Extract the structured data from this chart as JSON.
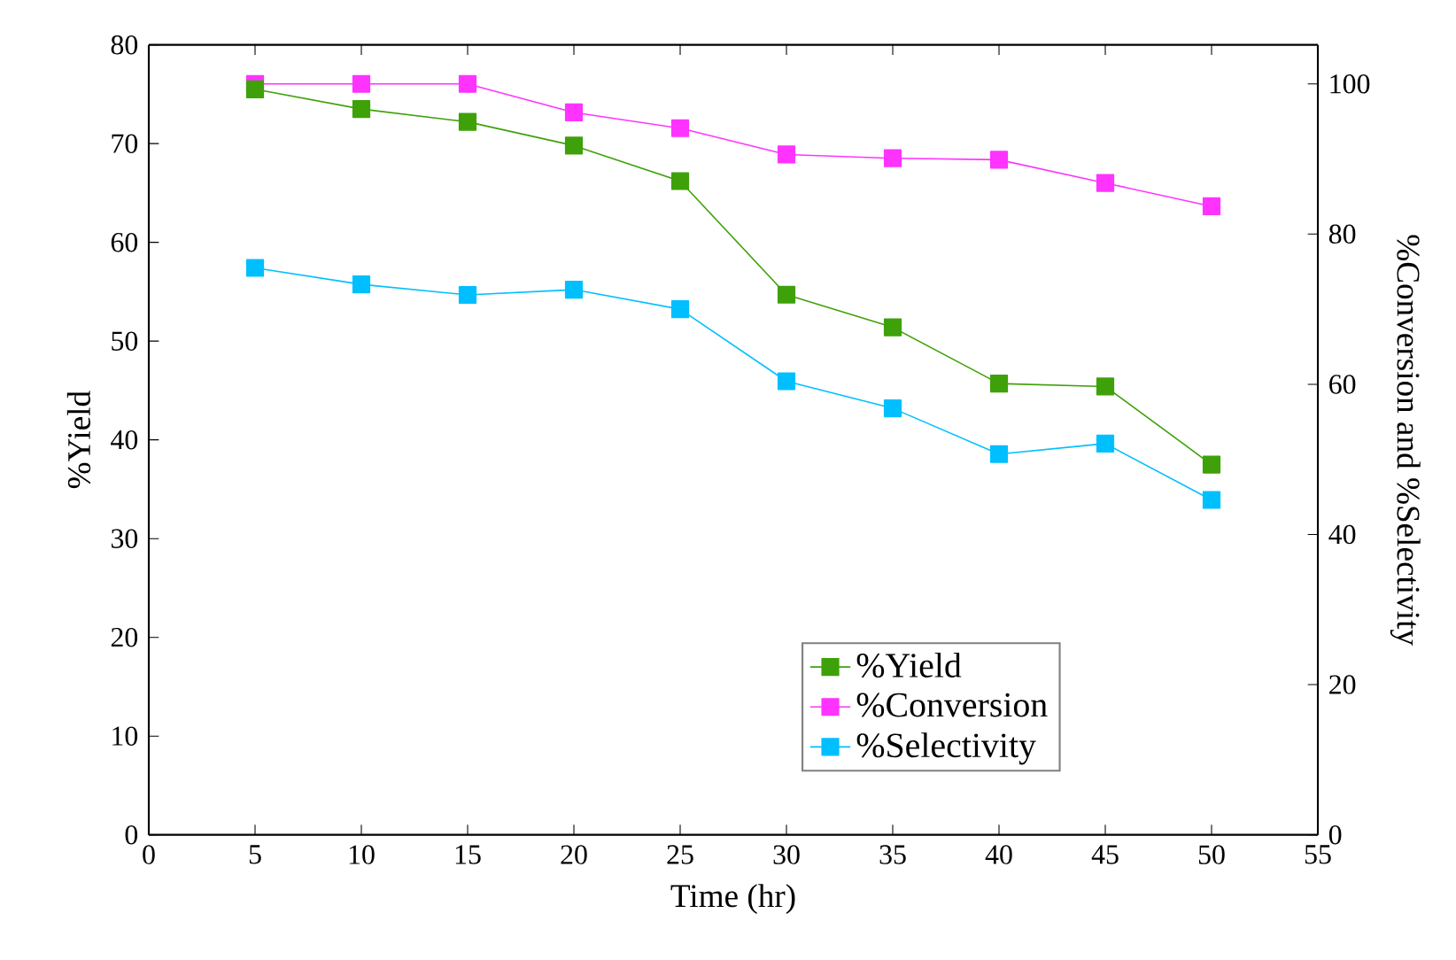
{
  "chart_data": {
    "type": "line",
    "xlabel": "Time (hr)",
    "ylabel": "%Yield",
    "y2label": "%Conversion and %Selectivity",
    "x": [
      5,
      10,
      15,
      20,
      25,
      30,
      35,
      40,
      45,
      50
    ],
    "series": [
      {
        "name": "%Yield",
        "color": "#3fa10a",
        "values": [
          75.5,
          73.5,
          72.2,
          69.8,
          66.2,
          54.7,
          51.4,
          45.7,
          45.4,
          37.5
        ]
      },
      {
        "name": "%Conversion",
        "color": "#ff33ff",
        "axis": "y2",
        "values": [
          100,
          100,
          100,
          96.2,
          94.1,
          90.6,
          90.1,
          89.9,
          86.8,
          83.7
        ]
      },
      {
        "name": "%Selectivity",
        "color": "#00bfff",
        "axis": "y2",
        "values": [
          75.5,
          73.3,
          71.9,
          72.6,
          70.0,
          60.4,
          56.8,
          50.7,
          52.1,
          44.6
        ]
      }
    ],
    "xlim": [
      0,
      55
    ],
    "xticks": [
      0,
      5,
      10,
      15,
      20,
      25,
      30,
      35,
      40,
      45,
      50,
      55
    ],
    "ylim": [
      0,
      80
    ],
    "yticks": [
      0,
      10,
      20,
      30,
      40,
      50,
      60,
      70,
      80
    ],
    "y2lim": [
      0,
      105.2
    ],
    "y2ticks": [
      0,
      20,
      40,
      60,
      80,
      100
    ],
    "marker": "square",
    "line_style": "solid",
    "grid": false,
    "legend": "bottom right"
  }
}
